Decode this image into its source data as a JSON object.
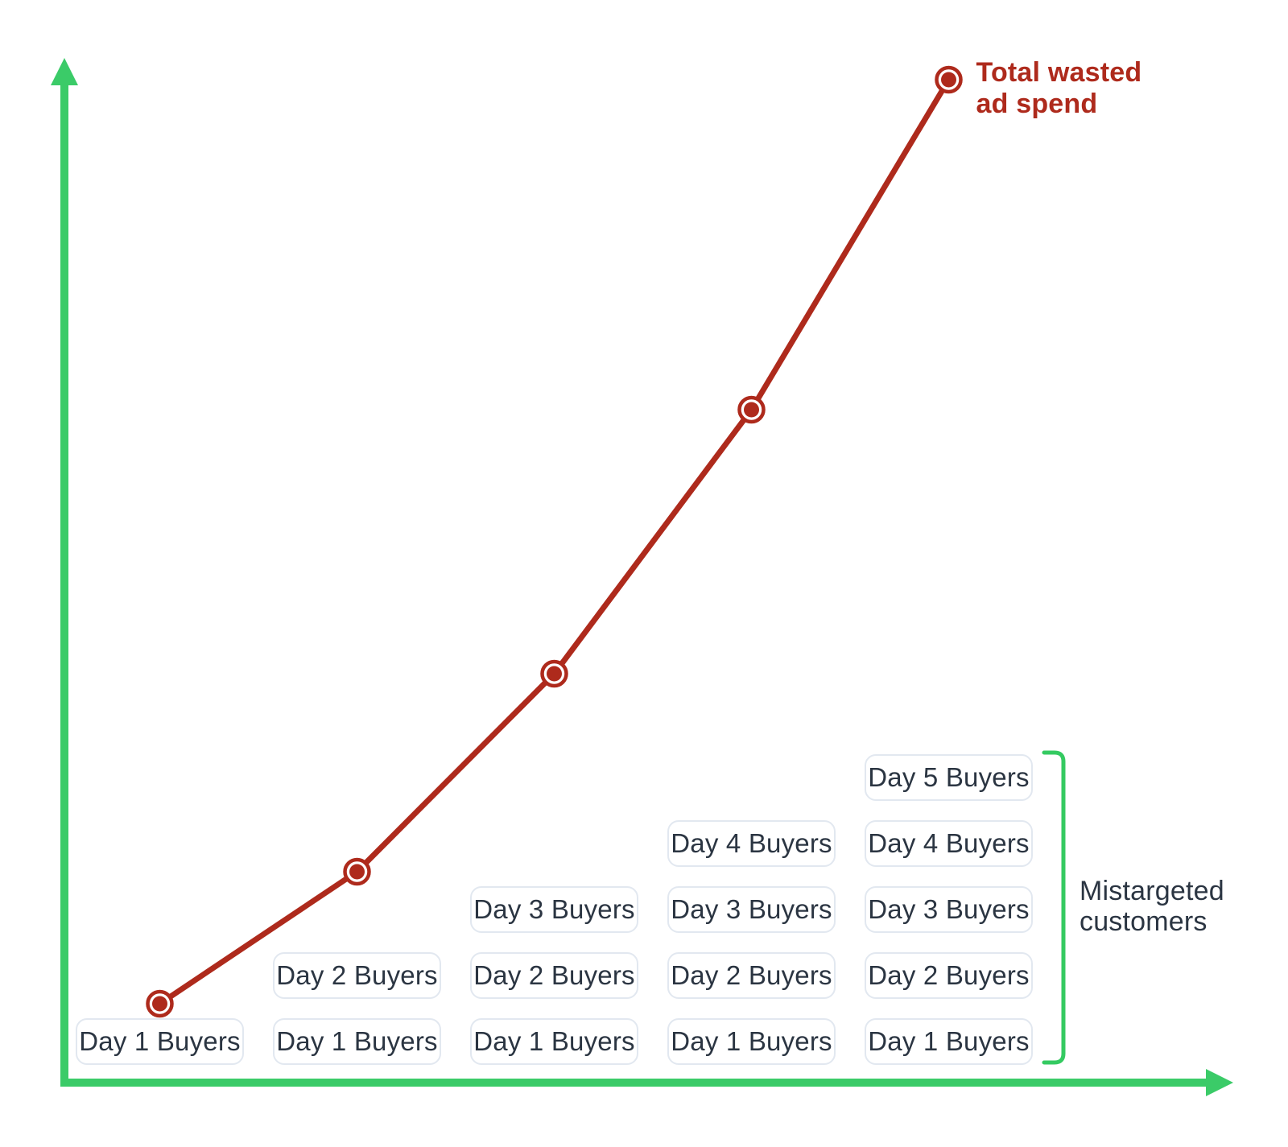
{
  "chart_data": {
    "type": "line",
    "title": "",
    "x": [
      "Day 1",
      "Day 2",
      "Day 3",
      "Day 4",
      "Day 5"
    ],
    "values": [
      1,
      3,
      6,
      10,
      15
    ],
    "series_name": "Total wasted ad spend",
    "annotation": {
      "line1": "Total wasted",
      "line2": "ad spend"
    },
    "legend_position": "none",
    "grid": "off",
    "axis_tick_labels": "none",
    "ylim": [
      0,
      15
    ]
  },
  "bracket_label": {
    "line1": "Mistargeted",
    "line2": "customers"
  },
  "grid": {
    "columns": [
      {
        "boxes": [
          "Day 1 Buyers"
        ]
      },
      {
        "boxes": [
          "Day 1 Buyers",
          "Day 2 Buyers"
        ]
      },
      {
        "boxes": [
          "Day 1 Buyers",
          "Day 2 Buyers",
          "Day 3 Buyers"
        ]
      },
      {
        "boxes": [
          "Day 1 Buyers",
          "Day 2 Buyers",
          "Day 3 Buyers",
          "Day 4 Buyers"
        ]
      },
      {
        "boxes": [
          "Day 1 Buyers",
          "Day 2 Buyers",
          "Day 3 Buyers",
          "Day 4 Buyers",
          "Day 5 Buyers"
        ]
      }
    ]
  },
  "colors": {
    "line_red": "#ae2a1c",
    "axis_green": "#3bcb68",
    "bracket_green": "#34ca61",
    "box_border": "#e2e8f0",
    "text_dark": "#2b3542"
  }
}
